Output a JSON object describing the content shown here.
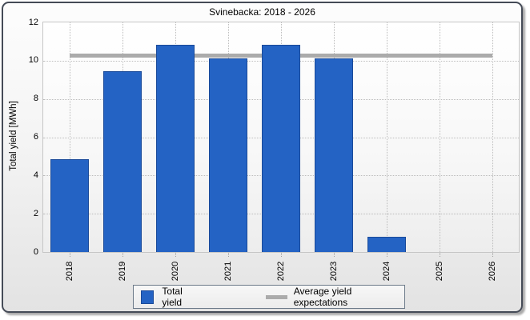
{
  "chart_data": {
    "type": "bar",
    "title": "Svinebacka: 2018 - 2026",
    "categories": [
      "2018",
      "2019",
      "2020",
      "2021",
      "2022",
      "2023",
      "2024",
      "2025",
      "2026"
    ],
    "series": [
      {
        "name": "Total yield",
        "type": "bar",
        "color": "#2463c4",
        "values": [
          4.85,
          9.45,
          10.85,
          10.1,
          10.85,
          10.1,
          0.8,
          0,
          0
        ]
      },
      {
        "name": "Average yield expectations",
        "type": "line",
        "color": "#ababab",
        "values": [
          10.25,
          10.25,
          10.25,
          10.25,
          10.25,
          10.25,
          10.25,
          10.25,
          10.25
        ]
      }
    ],
    "xlabel": "",
    "ylabel": "Total yield [MWh]",
    "ylim": [
      0,
      12
    ],
    "yticks": [
      0,
      2,
      4,
      6,
      8,
      10,
      12
    ],
    "grid": true,
    "grid_style": "dotted",
    "legend_position": "bottom",
    "x_tick_label_rotation_deg": -90
  },
  "colors": {
    "bar_fill": "#2463c4",
    "bar_border": "#1a4a99",
    "average_line": "#ababab",
    "panel_border": "#454b57",
    "legend_border": "#6c7a89"
  }
}
